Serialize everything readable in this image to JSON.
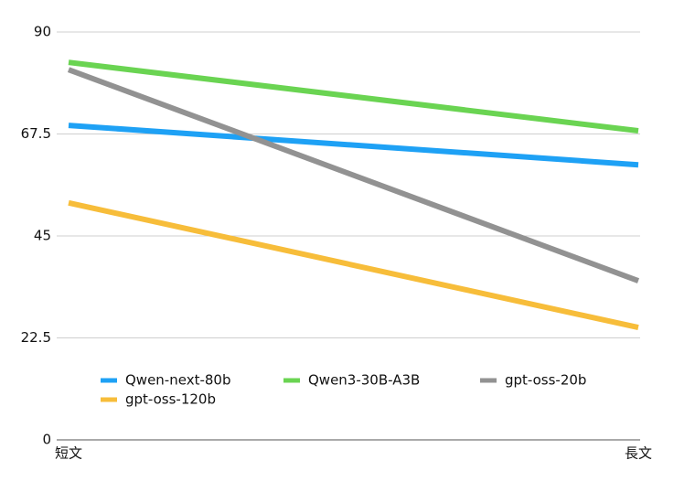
{
  "chart_data": {
    "type": "line",
    "categories": [
      "短文",
      "長文"
    ],
    "series": [
      {
        "name": "Qwen-next-80b",
        "color": "#1ea1f5",
        "values": [
          69.4,
          60.7
        ]
      },
      {
        "name": "Qwen3-30B-A3B",
        "color": "#6ad452",
        "values": [
          83.3,
          68.2
        ]
      },
      {
        "name": "gpt-oss-20b",
        "color": "#929292",
        "values": [
          81.7,
          35.1
        ]
      },
      {
        "name": "gpt-oss-120b",
        "color": "#f7bd3a",
        "values": [
          52.3,
          24.8
        ]
      }
    ],
    "ylim": [
      0,
      90
    ],
    "yticks": [
      0,
      22.5,
      45,
      67.5,
      90
    ],
    "grid": true
  }
}
